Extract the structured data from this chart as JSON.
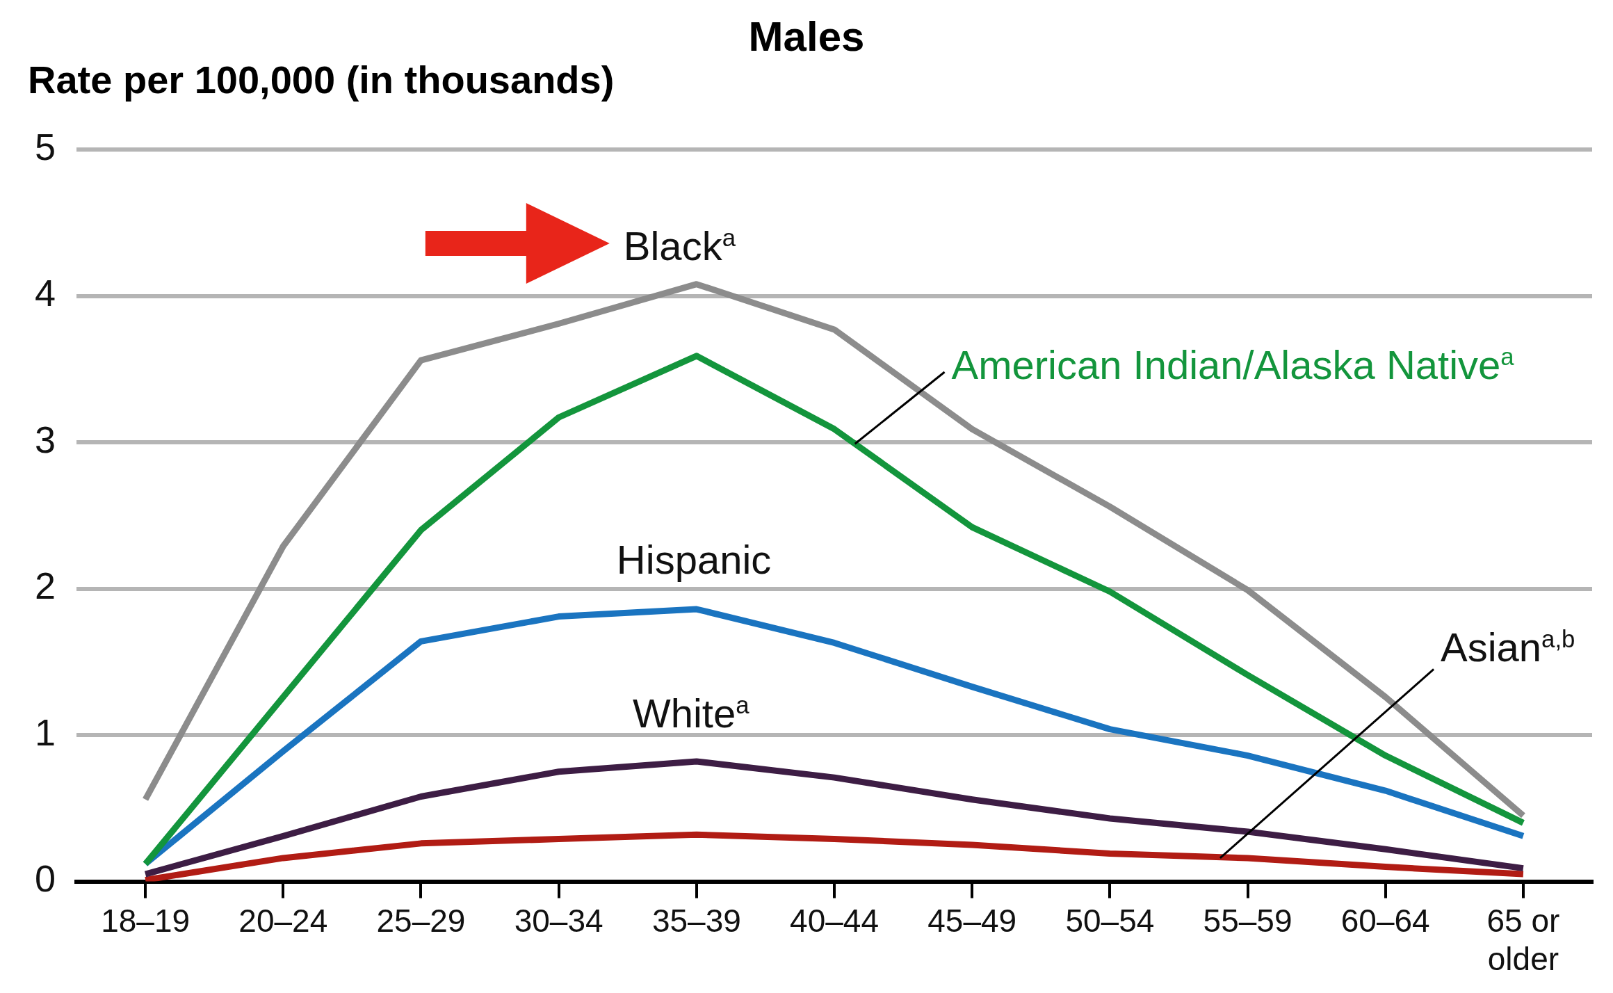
{
  "chart_data": {
    "type": "line",
    "title": "Males",
    "ylabel": "Rate per 100,000 (in thousands)",
    "categories": [
      "18–19",
      "20–24",
      "25–29",
      "30–34",
      "35–39",
      "40–44",
      "45–49",
      "50–54",
      "55–59",
      "60–64",
      "65 or older"
    ],
    "ylim": [
      0,
      5
    ],
    "yticks": [
      0,
      1,
      2,
      3,
      4,
      5
    ],
    "grid": "y",
    "legend": false,
    "marker": "none",
    "line_style": "solid",
    "series": [
      {
        "name": "Black$^{a}$",
        "color": "#8c8c8c",
        "values": [
          0.56,
          2.29,
          3.56,
          3.81,
          4.08,
          3.77,
          3.09,
          2.56,
          1.99,
          1.26,
          0.45
        ]
      },
      {
        "name": "American Indian/Alaska Native$^{a}$",
        "color": "#13953c",
        "values": [
          0.12,
          1.26,
          2.4,
          3.17,
          3.59,
          3.09,
          2.42,
          1.98,
          1.41,
          0.86,
          0.4
        ]
      },
      {
        "name": "Hispanic",
        "color": "#1a74c0",
        "values": [
          0.12,
          0.89,
          1.64,
          1.81,
          1.86,
          1.63,
          1.33,
          1.04,
          0.86,
          0.62,
          0.31
        ]
      },
      {
        "name": "White$^{a}$",
        "color": "#3d1d44",
        "values": [
          0.05,
          0.31,
          0.58,
          0.75,
          0.82,
          0.71,
          0.56,
          0.43,
          0.34,
          0.22,
          0.09
        ]
      },
      {
        "name": "Asian$^{a,b}$",
        "color": "#b11c14",
        "values": [
          0.01,
          0.16,
          0.26,
          0.29,
          0.32,
          0.29,
          0.25,
          0.19,
          0.16,
          0.1,
          0.05
        ]
      }
    ]
  }
}
